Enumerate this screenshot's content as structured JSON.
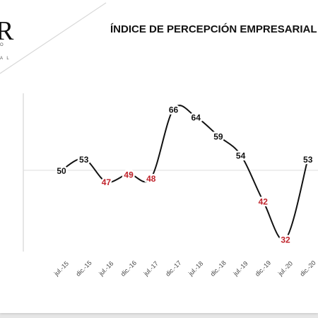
{
  "logo": {
    "letter": "R",
    "line1": "O",
    "line2": "A L"
  },
  "chart_data": {
    "type": "line",
    "title": "ÍNDICE DE PERCEPCIÓN EMPRESARIAL",
    "xlabel": "",
    "ylabel": "",
    "categories": [
      "jul.-15",
      "dic.-15",
      "jul.-16",
      "dic.-16",
      "jul.-17",
      "dic.-17",
      "jul.-18",
      "dic.-18",
      "jul.-19",
      "dic.-19",
      "jul.-20",
      "dic.-20"
    ],
    "series": [
      {
        "values": [
          50,
          53,
          47,
          49,
          48,
          66,
          64,
          59,
          54,
          42,
          32,
          53
        ]
      }
    ],
    "reference_line": 50,
    "ylim": [
      28,
      72
    ],
    "grid": false,
    "colors": {
      "line": "#111111",
      "label_above": "#111111",
      "label_below": "#c0232b",
      "reference": "#dddddd",
      "axis": "#cccccc"
    }
  }
}
